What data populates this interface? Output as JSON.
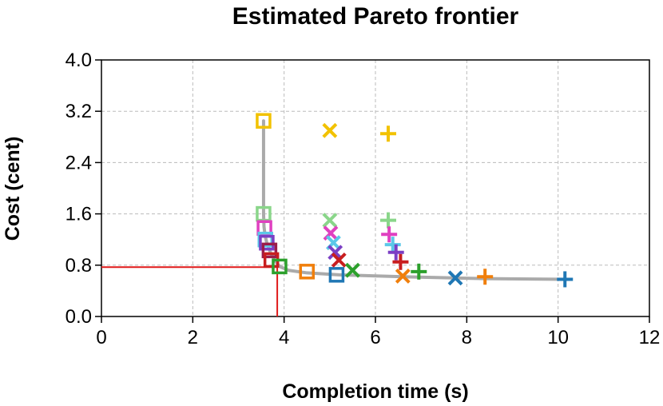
{
  "chart_data": {
    "type": "scatter",
    "title": "Estimated Pareto frontier",
    "xlabel": "Completion time (s)",
    "ylabel": "Cost (cent)",
    "xlim": [
      0,
      12
    ],
    "ylim": [
      0,
      4.0
    ],
    "xticks": [
      0,
      2,
      4,
      6,
      8,
      10,
      12
    ],
    "yticks": [
      0.0,
      0.8,
      1.6,
      2.4,
      3.2,
      4.0
    ],
    "x_tick_labels": [
      "0",
      "2",
      "4",
      "6",
      "8",
      "10",
      "12"
    ],
    "y_tick_labels": [
      "0.0",
      "0.8",
      "1.6",
      "2.4",
      "3.2",
      "4.0"
    ],
    "grid": true,
    "frontier_color": "#aaaaaa",
    "frontier": {
      "x": [
        3.55,
        3.55,
        3.56,
        3.58,
        3.62,
        3.7,
        3.8,
        3.9,
        4.1,
        4.5,
        5.2,
        6.6,
        7.8,
        8.4,
        10.2
      ],
      "y": [
        3.05,
        1.6,
        1.4,
        1.28,
        1.15,
        1.0,
        0.87,
        0.78,
        0.72,
        0.68,
        0.65,
        0.62,
        0.6,
        0.59,
        0.58
      ]
    },
    "selected_point": {
      "x": 3.85,
      "y": 0.77,
      "color": "#e01a1a"
    },
    "series": [
      {
        "name": "square",
        "marker": "square",
        "points": [
          {
            "x": 3.55,
            "y": 3.05,
            "color": "#f2c200"
          },
          {
            "x": 3.55,
            "y": 1.6,
            "color": "#8ad68a"
          },
          {
            "x": 3.57,
            "y": 1.38,
            "color": "#e040c0"
          },
          {
            "x": 3.59,
            "y": 1.2,
            "color": "#5bc8e8"
          },
          {
            "x": 3.62,
            "y": 1.15,
            "color": "#7b3fc4"
          },
          {
            "x": 3.68,
            "y": 1.03,
            "color": "#9b1d4a"
          },
          {
            "x": 3.72,
            "y": 0.88,
            "color": "#c81e1e"
          },
          {
            "x": 3.9,
            "y": 0.78,
            "color": "#2ca02c"
          },
          {
            "x": 4.5,
            "y": 0.7,
            "color": "#f07f0c"
          },
          {
            "x": 5.15,
            "y": 0.65,
            "color": "#1f77b4"
          }
        ]
      },
      {
        "name": "x",
        "marker": "x",
        "points": [
          {
            "x": 5.0,
            "y": 2.9,
            "color": "#f2c200"
          },
          {
            "x": 5.0,
            "y": 1.5,
            "color": "#8ad68a"
          },
          {
            "x": 5.02,
            "y": 1.3,
            "color": "#e040c0"
          },
          {
            "x": 5.08,
            "y": 1.15,
            "color": "#5bc8e8"
          },
          {
            "x": 5.12,
            "y": 1.0,
            "color": "#7b3fc4"
          },
          {
            "x": 5.2,
            "y": 0.88,
            "color": "#c81e1e"
          },
          {
            "x": 5.5,
            "y": 0.72,
            "color": "#2ca02c"
          },
          {
            "x": 6.6,
            "y": 0.63,
            "color": "#f07f0c"
          },
          {
            "x": 7.75,
            "y": 0.6,
            "color": "#1f77b4"
          }
        ]
      },
      {
        "name": "plus",
        "marker": "plus",
        "points": [
          {
            "x": 6.28,
            "y": 2.85,
            "color": "#f2c200"
          },
          {
            "x": 6.28,
            "y": 1.5,
            "color": "#8ad68a"
          },
          {
            "x": 6.3,
            "y": 1.28,
            "color": "#e040c0"
          },
          {
            "x": 6.38,
            "y": 1.12,
            "color": "#5bc8e8"
          },
          {
            "x": 6.45,
            "y": 1.0,
            "color": "#7b3fc4"
          },
          {
            "x": 6.55,
            "y": 0.85,
            "color": "#c81e1e"
          },
          {
            "x": 6.95,
            "y": 0.7,
            "color": "#2ca02c"
          },
          {
            "x": 8.4,
            "y": 0.62,
            "color": "#f07f0c"
          },
          {
            "x": 10.15,
            "y": 0.58,
            "color": "#1f77b4"
          }
        ]
      }
    ]
  }
}
